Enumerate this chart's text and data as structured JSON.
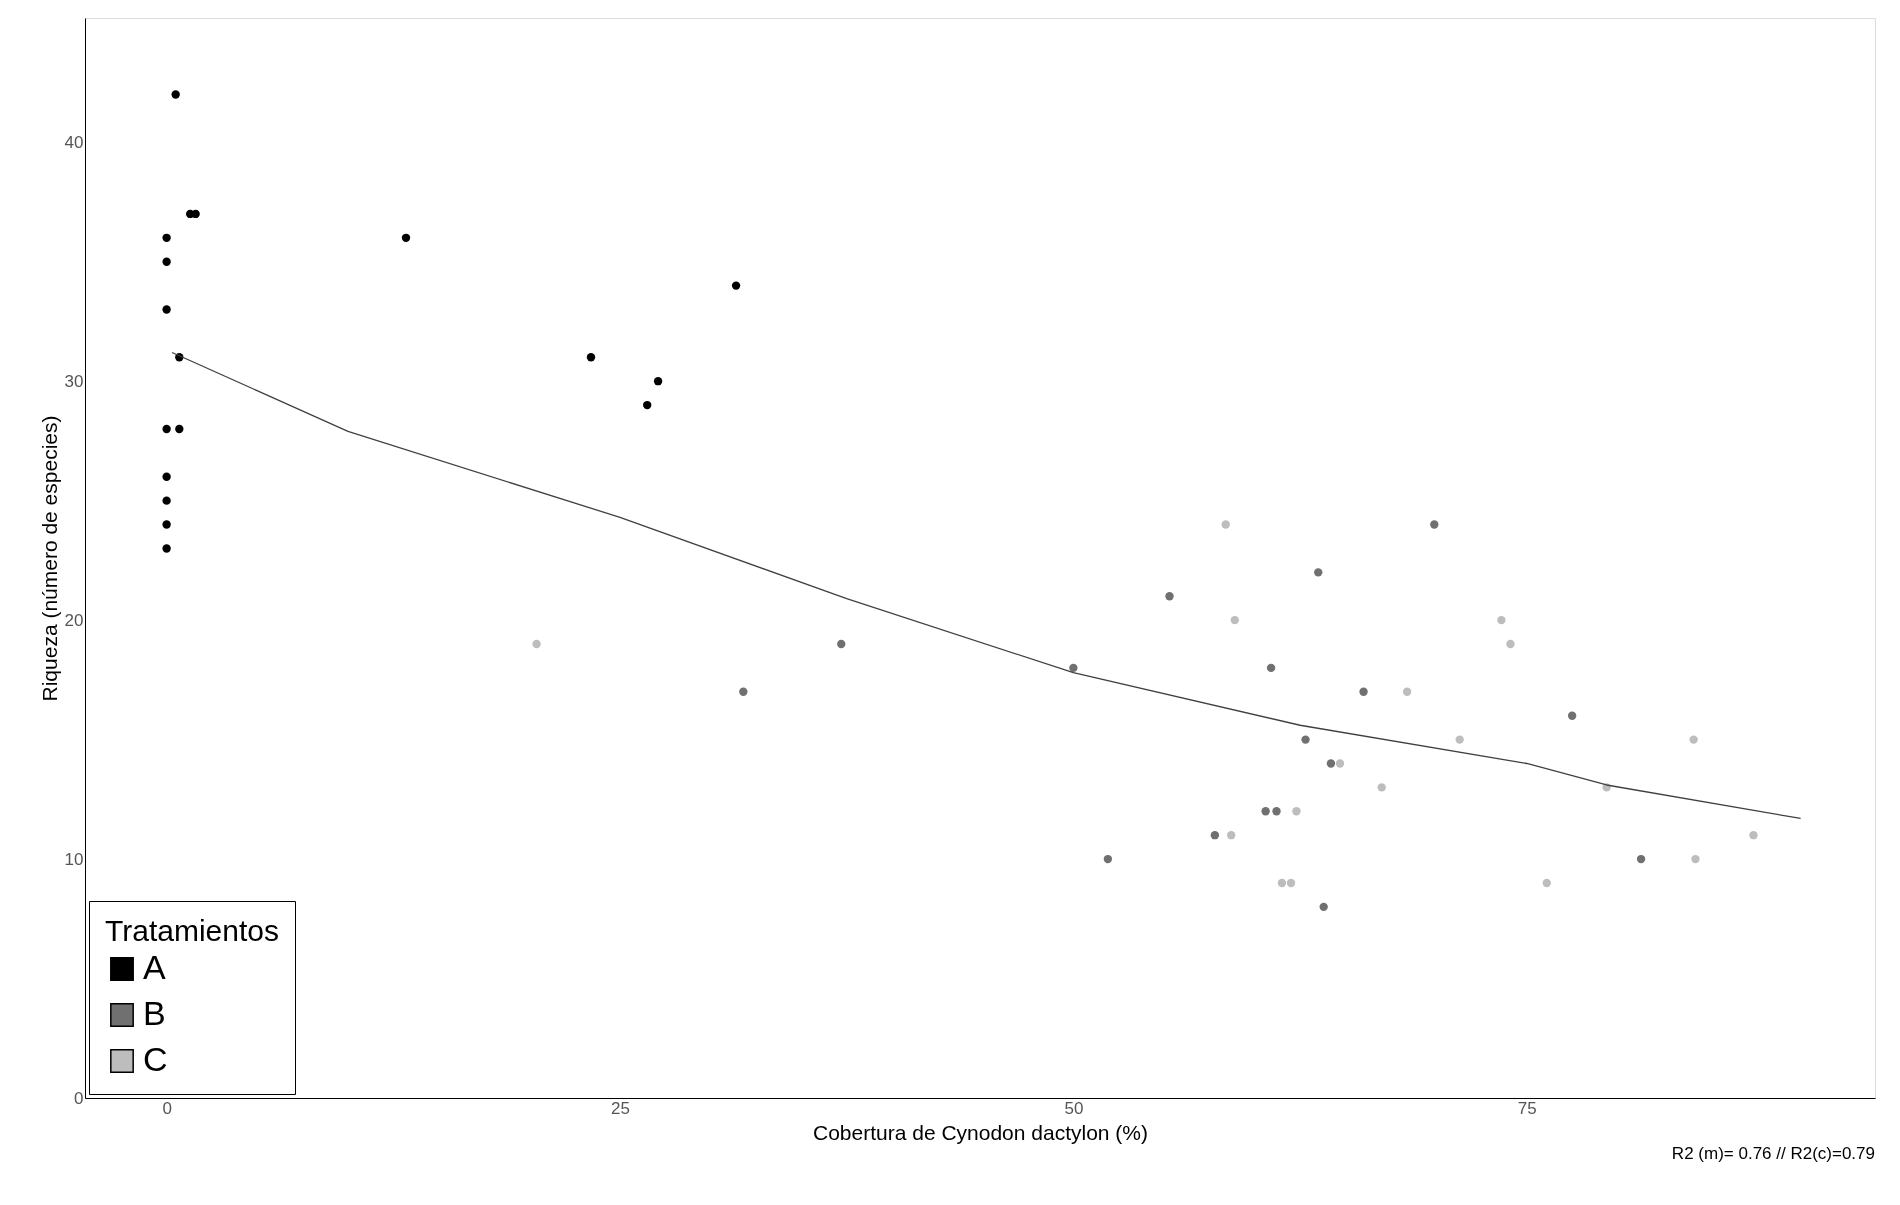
{
  "chart_data": {
    "type": "scatter",
    "xlabel": "Cobertura de Cynodon dactylon (%)",
    "ylabel": "Riqueza (número de especies)",
    "legend_title": "Tratamientos",
    "xlim": [
      -4.5,
      94.2
    ],
    "ylim": [
      0,
      45.2
    ],
    "xticks": [
      0,
      25,
      50,
      75
    ],
    "yticks": [
      0,
      10,
      20,
      30,
      40
    ],
    "grid": false,
    "legend": "bottom left",
    "marker": "circle",
    "annotations": [
      "R2 (m)= 0.76   // R2(c)=0.79"
    ],
    "series": [
      {
        "name": "A",
        "color": "#000000",
        "x": [
          0.5,
          1.3,
          1.6,
          0,
          0,
          0,
          0.7,
          0,
          0.7,
          0,
          0,
          0,
          0,
          13.2,
          23.4,
          26.5,
          27.1,
          31.4
        ],
        "values": [
          42,
          37,
          37,
          36,
          35,
          33,
          31,
          28,
          28,
          26,
          25,
          24,
          23,
          36,
          31,
          29,
          30,
          34
        ]
      },
      {
        "name": "B",
        "color": "#707070",
        "x": [
          31.8,
          37.2,
          50,
          51.9,
          55.3,
          57.8,
          60.9,
          60.6,
          61.2,
          62.8,
          63.5,
          63.8,
          64.2,
          66.0,
          69.9,
          77.5,
          81.3
        ],
        "values": [
          17,
          19,
          18,
          10,
          21,
          11,
          18,
          12,
          12,
          15,
          22,
          8,
          14,
          17,
          24,
          16,
          10
        ]
      },
      {
        "name": "C",
        "color": "#bdbdbd",
        "x": [
          20.4,
          58.4,
          58.9,
          58.7,
          61.5,
          62.0,
          62.3,
          64.7,
          67.0,
          68.4,
          71.3,
          73.6,
          74.1,
          76.1,
          79.4,
          84.2,
          84.3,
          87.5
        ],
        "values": [
          19,
          24,
          20,
          11,
          9,
          9,
          12,
          14,
          13,
          17,
          15,
          20,
          19,
          9,
          13,
          15,
          10,
          11
        ]
      },
      {
        "color": "#404040",
        "type": "line",
        "marker": "none",
        "x": [
          0.3,
          10,
          25,
          37.5,
          50,
          62.5,
          75,
          79.4,
          90.1
        ],
        "values": [
          31.2,
          27.9,
          24.3,
          20.9,
          17.8,
          15.6,
          14.0,
          13.1,
          11.7
        ]
      }
    ]
  }
}
